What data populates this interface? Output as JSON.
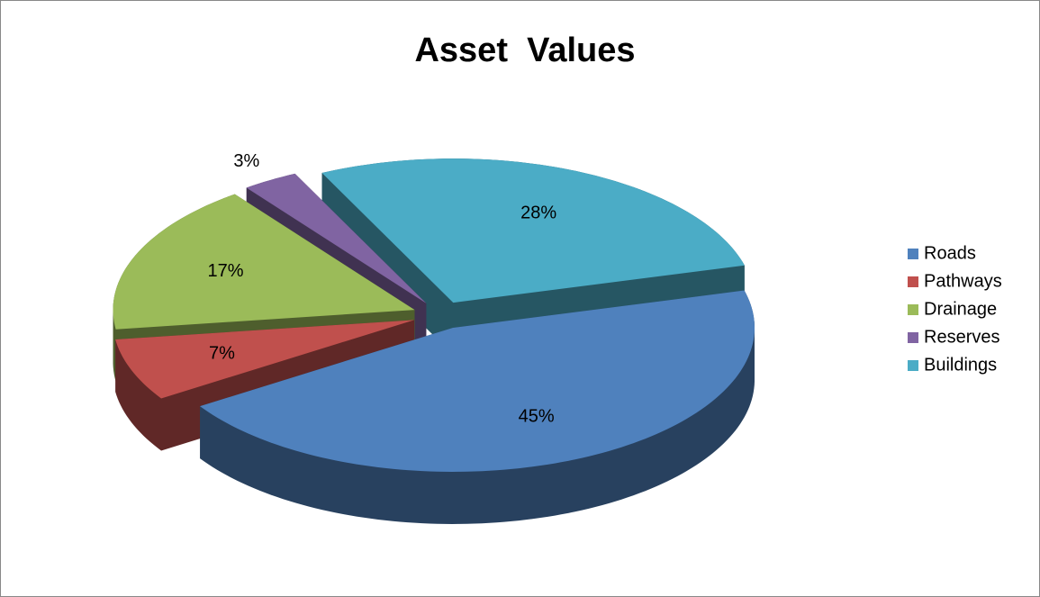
{
  "chart_data": {
    "type": "pie3d",
    "title": "Asset  Values",
    "categories": [
      "Roads",
      "Pathways",
      "Drainage",
      "Reserves",
      "Buildings"
    ],
    "values": [
      45,
      7,
      17,
      3,
      28
    ],
    "value_labels": [
      "45%",
      "7%",
      "17%",
      "3%",
      "28%"
    ],
    "colors": [
      "#4f81bd",
      "#c0504d",
      "#9bbb59",
      "#8064a2",
      "#4bacc6"
    ],
    "legend": "right"
  }
}
